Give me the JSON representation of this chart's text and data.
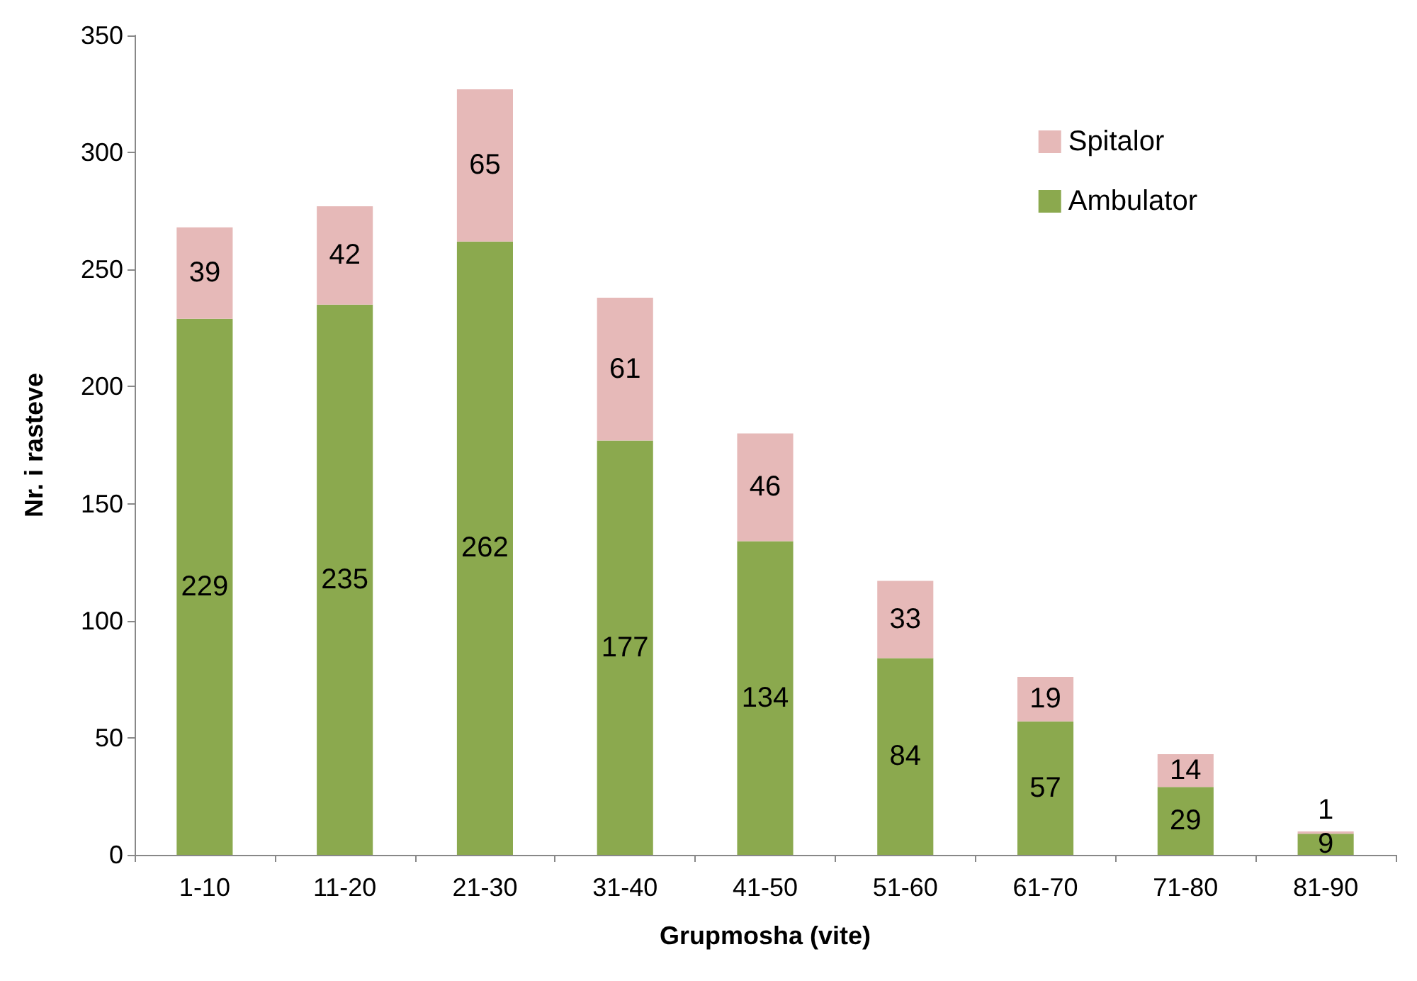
{
  "chart_data": {
    "type": "bar",
    "stacked": true,
    "xlabel": "Grupmosha (vite)",
    "ylabel": "Nr. i rasteve",
    "categories": [
      "1-10",
      "11-20",
      "21-30",
      "31-40",
      "41-50",
      "51-60",
      "61-70",
      "71-80",
      "81-90"
    ],
    "series": [
      {
        "name": "Ambulator",
        "color": "#8ba94e",
        "values": [
          229,
          235,
          262,
          177,
          134,
          84,
          57,
          29,
          9
        ]
      },
      {
        "name": "Spitalor",
        "color": "#e6b9b8",
        "values": [
          39,
          42,
          65,
          61,
          46,
          33,
          19,
          14,
          1
        ]
      }
    ],
    "ylim": [
      0,
      350
    ],
    "yticks": [
      0,
      50,
      100,
      150,
      200,
      250,
      300,
      350
    ],
    "data_labels": true,
    "legend": "top right",
    "grid": false
  }
}
